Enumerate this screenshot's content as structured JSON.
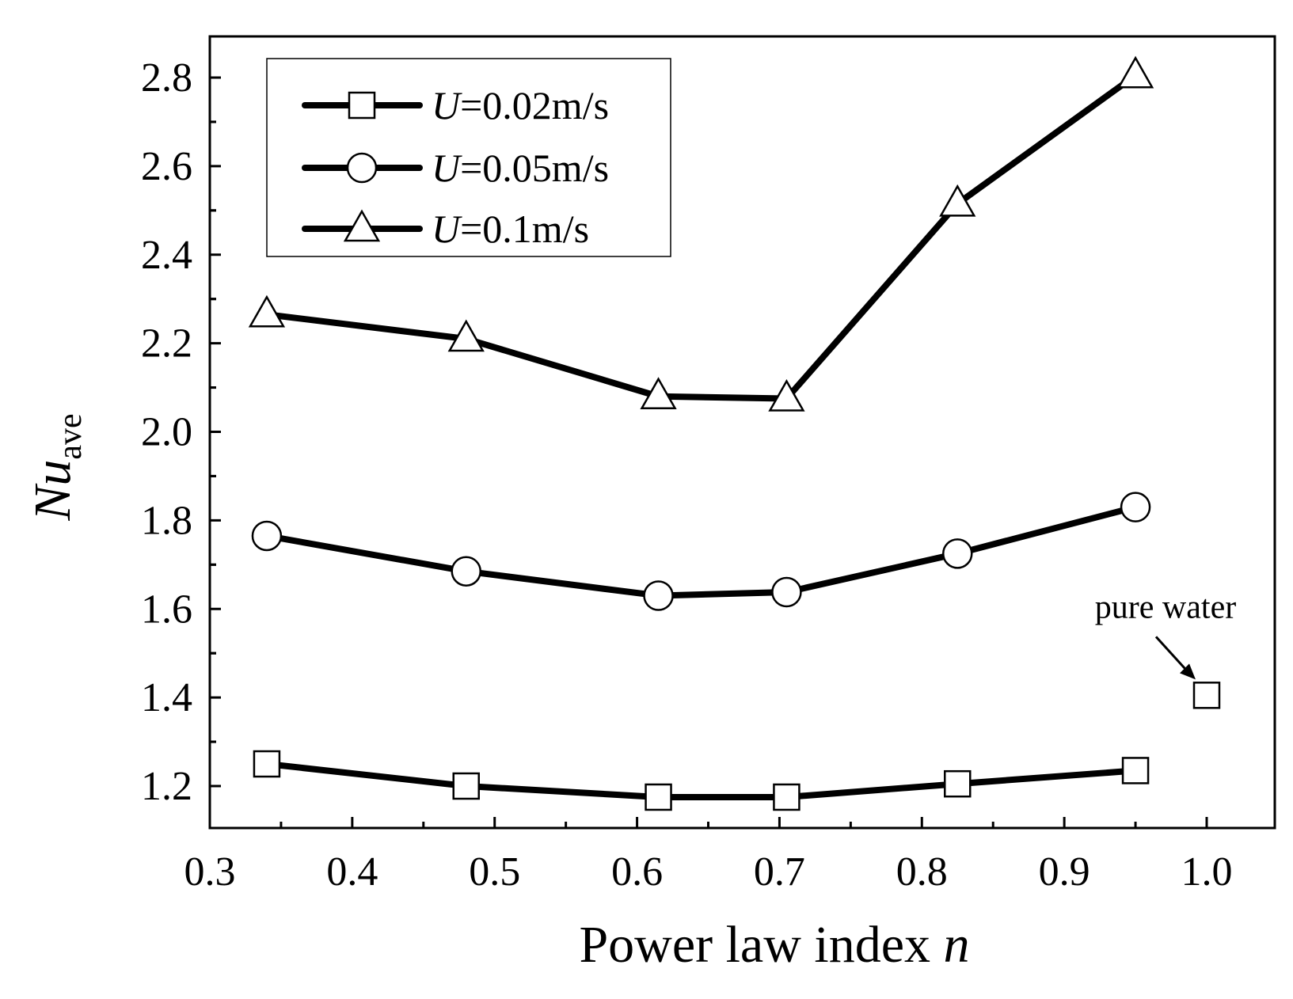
{
  "chart_data": {
    "type": "line",
    "title": "",
    "xlabel": "Power law index",
    "xlabel_var": "n",
    "ylabel_main": "Nu",
    "ylabel_sub": "ave",
    "xlim": [
      0.3,
      1.05
    ],
    "ylim": [
      1.1,
      2.9
    ],
    "xticks": [
      "0.3",
      "0.4",
      "0.5",
      "0.6",
      "0.7",
      "0.8",
      "0.9",
      "1.0"
    ],
    "yticks": [
      "1.2",
      "1.4",
      "1.6",
      "1.8",
      "2.0",
      "2.2",
      "2.4",
      "2.6",
      "2.8"
    ],
    "x": [
      0.34,
      0.48,
      0.615,
      0.705,
      0.825,
      0.95
    ],
    "series": [
      {
        "name": "U=0.02m/s",
        "var": "U",
        "label": "=0.02m/s",
        "marker": "square",
        "values": [
          1.25,
          1.2,
          1.175,
          1.175,
          1.205,
          1.235
        ]
      },
      {
        "name": "U=0.05m/s",
        "var": "U",
        "label": "=0.05m/s",
        "marker": "circle",
        "values": [
          1.765,
          1.685,
          1.63,
          1.638,
          1.725,
          1.83
        ]
      },
      {
        "name": "U=0.1m/s",
        "var": "U",
        "label": "=0.1m/s",
        "marker": "triangle",
        "values": [
          2.265,
          2.21,
          2.08,
          2.075,
          2.515,
          2.805
        ]
      }
    ],
    "annotation": {
      "text": "pure water",
      "x": 1.0,
      "y": 1.405,
      "marker": "square"
    },
    "legend_position": "top-left",
    "grid": false
  }
}
